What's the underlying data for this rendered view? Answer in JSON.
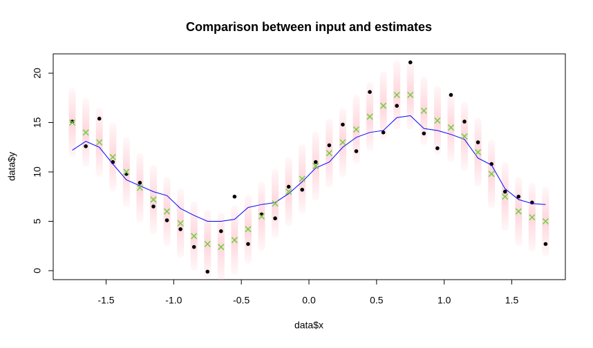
{
  "chart_data": {
    "type": "scatter",
    "title": "Comparison between input and estimates",
    "x_label": "data$x",
    "y_label": "data$y",
    "x": [
      -1.75,
      -1.65,
      -1.55,
      -1.45,
      -1.35,
      -1.25,
      -1.15,
      -1.05,
      -0.95,
      -0.85,
      -0.75,
      -0.65,
      -0.55,
      -0.45,
      -0.35,
      -0.25,
      -0.15,
      -0.05,
      0.05,
      0.15,
      0.25,
      0.35,
      0.45,
      0.55,
      0.65,
      0.75,
      0.85,
      0.95,
      1.05,
      1.15,
      1.25,
      1.35,
      1.45,
      1.55,
      1.65,
      1.75
    ],
    "series": [
      {
        "marker": "cloud",
        "color": "#ffb6c1",
        "spread": 3.5,
        "values": [
          15.0,
          14.0,
          13.0,
          11.5,
          10.0,
          8.4,
          7.2,
          6.0,
          4.8,
          3.5,
          2.7,
          2.4,
          3.1,
          4.2,
          5.5,
          6.8,
          8.0,
          9.3,
          10.6,
          11.9,
          13.0,
          14.3,
          15.6,
          16.7,
          17.8,
          17.8,
          16.2,
          15.2,
          14.5,
          13.6,
          12.0,
          9.8,
          7.5,
          6.0,
          5.4,
          5.0
        ]
      },
      {
        "marker": "point",
        "color": "#000000",
        "values": [
          15.1,
          12.6,
          15.4,
          11.0,
          9.8,
          8.9,
          6.5,
          5.1,
          4.2,
          2.4,
          -0.1,
          4.0,
          7.5,
          2.7,
          5.7,
          5.3,
          8.5,
          8.2,
          11.0,
          12.7,
          14.8,
          12.1,
          18.1,
          14.0,
          16.7,
          21.1,
          13.9,
          12.4,
          17.8,
          15.1,
          13.0,
          10.8,
          8.0,
          7.5,
          6.9,
          2.7
        ]
      },
      {
        "marker": "line",
        "color": "#0000ff",
        "values": [
          12.2,
          13.1,
          12.5,
          10.8,
          9.2,
          8.6,
          8.0,
          7.6,
          6.3,
          5.6,
          5.0,
          5.0,
          5.2,
          6.4,
          6.7,
          6.9,
          7.8,
          9.0,
          10.4,
          11.0,
          12.5,
          13.5,
          14.0,
          14.2,
          15.5,
          15.7,
          14.4,
          14.2,
          13.8,
          13.3,
          11.4,
          10.7,
          8.3,
          7.2,
          6.8,
          6.7
        ]
      },
      {
        "marker": "cross",
        "color": "#6fcf3a",
        "values": [
          15.0,
          14.0,
          13.0,
          11.5,
          10.0,
          8.4,
          7.2,
          6.0,
          4.8,
          3.5,
          2.7,
          2.4,
          3.1,
          4.2,
          5.5,
          6.8,
          8.0,
          9.3,
          10.6,
          11.9,
          13.0,
          14.3,
          15.6,
          16.7,
          17.8,
          17.8,
          16.2,
          15.2,
          14.5,
          13.6,
          12.0,
          9.8,
          7.5,
          6.0,
          5.4,
          5.0
        ]
      }
    ],
    "xlim": [
      -1.891,
      1.896
    ],
    "ylim": [
      -0.91,
      21.96
    ],
    "xticks": [
      -1.5,
      {
        "value": -1.0,
        "label": "-1.0"
      },
      -0.5,
      {
        "value": 0,
        "label": "0.0"
      },
      0.5,
      {
        "value": 1.0,
        "label": "1.0"
      },
      1.5
    ],
    "yticks": [
      0,
      5,
      10,
      15,
      20
    ]
  }
}
